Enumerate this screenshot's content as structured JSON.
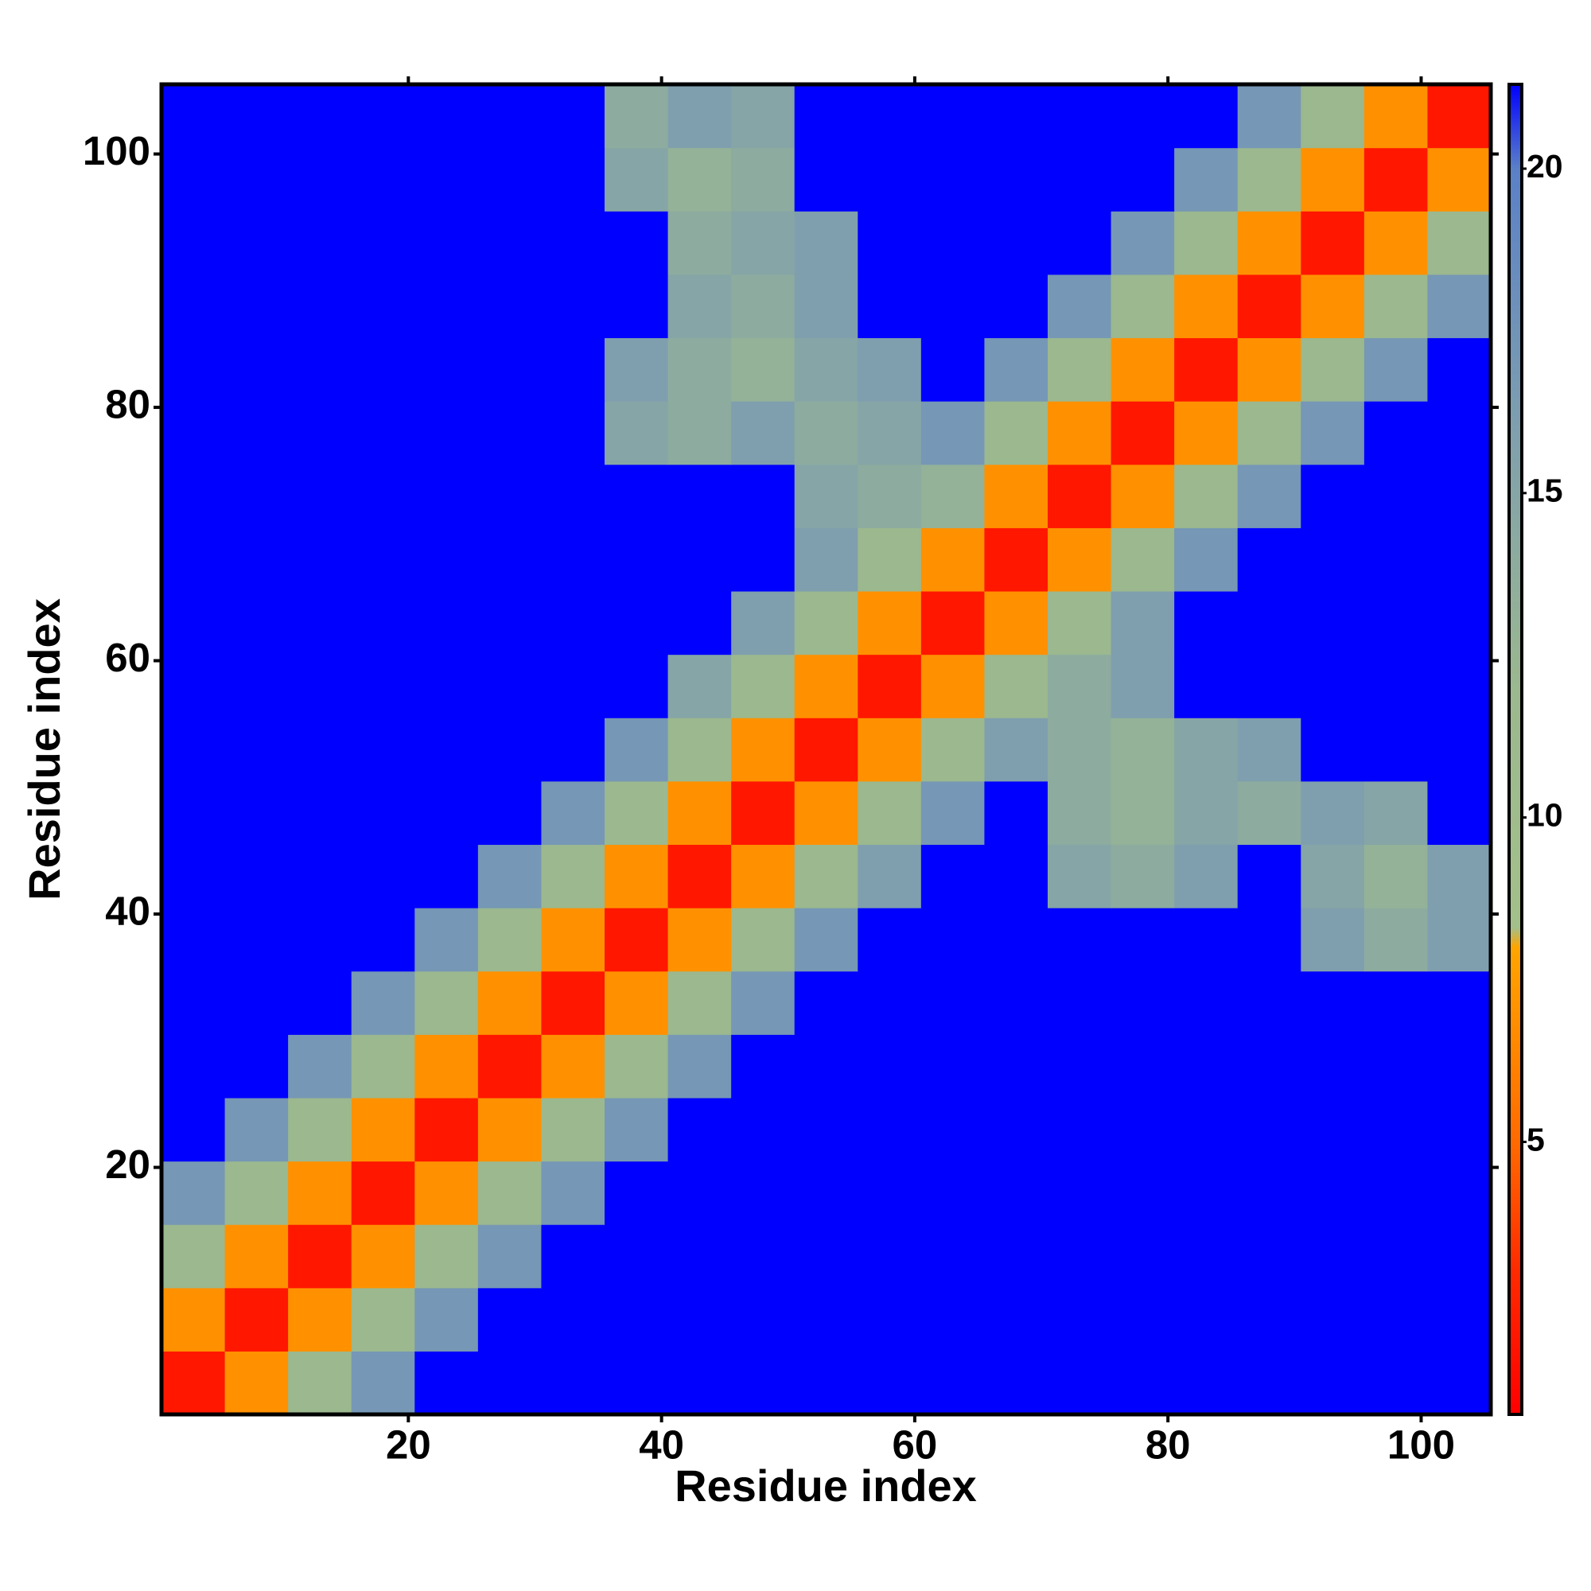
{
  "chart_data": {
    "type": "heatmap",
    "xlabel": "Residue index",
    "ylabel": "Residue index",
    "x": [
      3,
      8,
      13,
      18,
      23,
      28,
      33,
      38,
      43,
      48,
      53,
      58,
      63,
      68,
      73,
      78,
      83,
      88,
      93,
      98,
      103
    ],
    "y": [
      3,
      8,
      13,
      18,
      23,
      28,
      33,
      38,
      43,
      48,
      53,
      58,
      63,
      68,
      73,
      78,
      83,
      88,
      93,
      98,
      103
    ],
    "z": [
      [
        2,
        7,
        12,
        17,
        21.3,
        21.3,
        21.3,
        21.3,
        21.3,
        21.3,
        21.3,
        21.3,
        21.3,
        21.3,
        21.3,
        21.3,
        21.3,
        21.3,
        21.3,
        21.3,
        21.3
      ],
      [
        7,
        2,
        7,
        12,
        17,
        21.3,
        21.3,
        21.3,
        21.3,
        21.3,
        21.3,
        21.3,
        21.3,
        21.3,
        21.3,
        21.3,
        21.3,
        21.3,
        21.3,
        21.3,
        21.3
      ],
      [
        12,
        7,
        2,
        7,
        12,
        17,
        21.3,
        21.3,
        21.3,
        21.3,
        21.3,
        21.3,
        21.3,
        21.3,
        21.3,
        21.3,
        21.3,
        21.3,
        21.3,
        21.3,
        21.3
      ],
      [
        17,
        12,
        7,
        2,
        7,
        12,
        17,
        21.3,
        21.3,
        21.3,
        21.3,
        21.3,
        21.3,
        21.3,
        21.3,
        21.3,
        21.3,
        21.3,
        21.3,
        21.3,
        21.3
      ],
      [
        21.3,
        17,
        12,
        7,
        2,
        7,
        12,
        17,
        21.3,
        21.3,
        21.3,
        21.3,
        21.3,
        21.3,
        21.3,
        21.3,
        21.3,
        21.3,
        21.3,
        21.3,
        21.3
      ],
      [
        21.3,
        21.3,
        17,
        12,
        7,
        2,
        7,
        12,
        17,
        21.3,
        21.3,
        21.3,
        21.3,
        21.3,
        21.3,
        21.3,
        21.3,
        21.3,
        21.3,
        21.3,
        21.3
      ],
      [
        21.3,
        21.3,
        21.3,
        17,
        12,
        7,
        2,
        7,
        12,
        17,
        21.3,
        21.3,
        21.3,
        21.3,
        21.3,
        21.3,
        21.3,
        21.3,
        21.3,
        21.3,
        21.3
      ],
      [
        21.3,
        21.3,
        21.3,
        21.3,
        17,
        12,
        7,
        2,
        7,
        12,
        17,
        21.3,
        21.3,
        21.3,
        21.3,
        21.3,
        21.3,
        21.3,
        16,
        14,
        16
      ],
      [
        21.3,
        21.3,
        21.3,
        21.3,
        21.3,
        17,
        12,
        7,
        2,
        7,
        12,
        16,
        21.3,
        21.3,
        15,
        14,
        16,
        21.3,
        15,
        13,
        16
      ],
      [
        21.3,
        21.3,
        21.3,
        21.3,
        21.3,
        21.3,
        17,
        12,
        7,
        2,
        7,
        12,
        17,
        21.3,
        14,
        13,
        15,
        14,
        16,
        15,
        21.3
      ],
      [
        21.3,
        21.3,
        21.3,
        21.3,
        21.3,
        21.3,
        21.3,
        17,
        12,
        7,
        2,
        7,
        12,
        16,
        14,
        13,
        15,
        16,
        21.3,
        21.3,
        21.3
      ],
      [
        21.3,
        21.3,
        21.3,
        21.3,
        21.3,
        21.3,
        21.3,
        21.3,
        15,
        12,
        7,
        2,
        7,
        12,
        14,
        16,
        21.3,
        21.3,
        21.3,
        21.3,
        21.3
      ],
      [
        21.3,
        21.3,
        21.3,
        21.3,
        21.3,
        21.3,
        21.3,
        21.3,
        21.3,
        16,
        12,
        7,
        2,
        7,
        12,
        16,
        21.3,
        21.3,
        21.3,
        21.3,
        21.3
      ],
      [
        21.3,
        21.3,
        21.3,
        21.3,
        21.3,
        21.3,
        21.3,
        21.3,
        21.3,
        21.3,
        16,
        12,
        7,
        2,
        7,
        12,
        17,
        21.3,
        21.3,
        21.3,
        21.3
      ],
      [
        21.3,
        21.3,
        21.3,
        21.3,
        21.3,
        21.3,
        21.3,
        21.3,
        21.3,
        21.3,
        15,
        14,
        13,
        7,
        2,
        7,
        12,
        17,
        21.3,
        21.3,
        21.3
      ],
      [
        21.3,
        21.3,
        21.3,
        21.3,
        21.3,
        21.3,
        21.3,
        15,
        14,
        16,
        14,
        15,
        17,
        12,
        7,
        2,
        7,
        12,
        17,
        21.3,
        21.3
      ],
      [
        21.3,
        21.3,
        21.3,
        21.3,
        21.3,
        21.3,
        21.3,
        16,
        14,
        13,
        15,
        16,
        21.3,
        17,
        12,
        7,
        2,
        7,
        12,
        17,
        21.3
      ],
      [
        21.3,
        21.3,
        21.3,
        21.3,
        21.3,
        21.3,
        21.3,
        21.3,
        15,
        14,
        16,
        21.3,
        21.3,
        21.3,
        17,
        12,
        7,
        2,
        7,
        12,
        17
      ],
      [
        21.3,
        21.3,
        21.3,
        21.3,
        21.3,
        21.3,
        21.3,
        21.3,
        14,
        15,
        16,
        21.3,
        21.3,
        21.3,
        21.3,
        17,
        12,
        7,
        2,
        7,
        12
      ],
      [
        21.3,
        21.3,
        21.3,
        21.3,
        21.3,
        21.3,
        21.3,
        15,
        13,
        14,
        21.3,
        21.3,
        21.3,
        21.3,
        21.3,
        21.3,
        17,
        12,
        7,
        2,
        7
      ],
      [
        21.3,
        21.3,
        21.3,
        21.3,
        21.3,
        21.3,
        21.3,
        14,
        16,
        15,
        21.3,
        21.3,
        21.3,
        21.3,
        21.3,
        21.3,
        21.3,
        17,
        12,
        7,
        2
      ]
    ],
    "xlim": [
      0.5,
      105.5
    ],
    "ylim": [
      0.5,
      105.5
    ],
    "xticks": [
      20,
      40,
      60,
      80,
      100
    ],
    "yticks": [
      20,
      40,
      60,
      80,
      100
    ],
    "clim": [
      0.8,
      21.3
    ],
    "cticks": [
      5,
      10,
      15,
      20
    ],
    "colorscale": [
      [
        0.8,
        "#ff0000"
      ],
      [
        3,
        "#ff2a00"
      ],
      [
        5,
        "#ff6a00"
      ],
      [
        8,
        "#ffa500"
      ],
      [
        8.3,
        "#a3c08a"
      ],
      [
        12,
        "#9bb88f"
      ],
      [
        16,
        "#7f9fae"
      ],
      [
        20,
        "#5a80c8"
      ],
      [
        21.3,
        "#0000ff"
      ]
    ]
  }
}
